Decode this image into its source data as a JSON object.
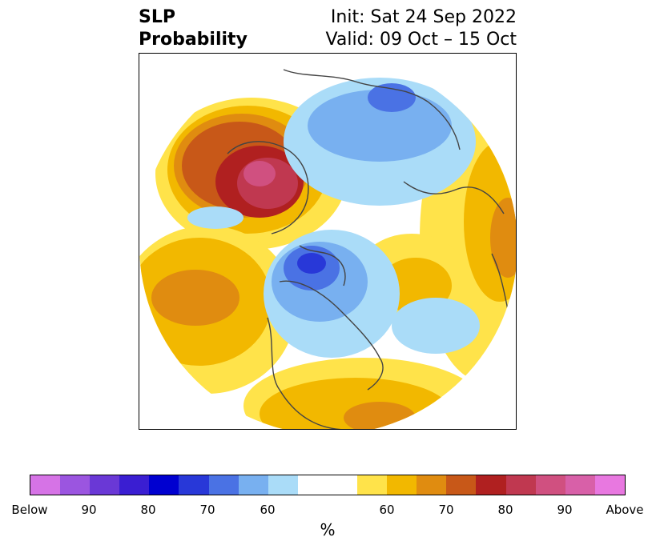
{
  "title": {
    "line1": "SLP",
    "line2": "Probability"
  },
  "subtitle": {
    "init": "Init: Sat 24 Sep 2022",
    "valid": "Valid: 09 Oct – 15 Oct"
  },
  "colorbar": {
    "colors": [
      "#d673e6",
      "#9b55e0",
      "#6a38d6",
      "#3a1ed2",
      "#0000d0",
      "#2838d8",
      "#4a72e4",
      "#78b0f0",
      "#aadcf8",
      "#ffffff",
      "#ffe34a",
      "#f2b800",
      "#e08c10",
      "#c85818",
      "#b02020",
      "#c03850",
      "#d05080",
      "#d860a8",
      "#e878e0"
    ],
    "tick_labels": [
      "Below",
      "90",
      "80",
      "70",
      "60",
      "60",
      "70",
      "80",
      "90",
      "Above"
    ],
    "unit": "%"
  }
}
